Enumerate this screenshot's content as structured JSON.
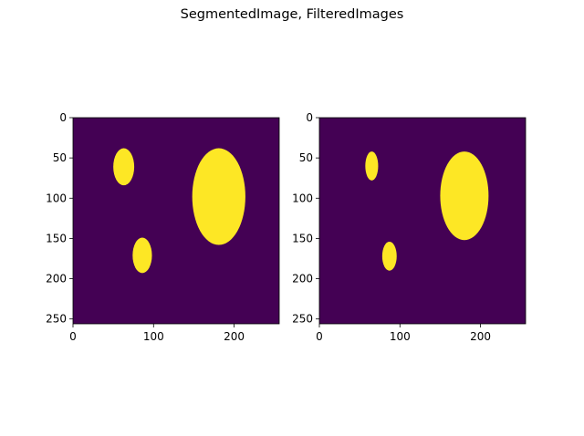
{
  "figure": {
    "title": "SegmentedImage, FilteredImages"
  },
  "chart_data": [
    {
      "type": "heatmap",
      "title": "",
      "xlabel": "",
      "ylabel": "",
      "xlim": [
        0,
        256
      ],
      "ylim": [
        256,
        0
      ],
      "xticks": [
        0,
        100,
        200
      ],
      "yticks": [
        0,
        50,
        100,
        150,
        200,
        250
      ],
      "grid": false,
      "colors": {
        "background": "#440154",
        "foreground": "#fde725"
      },
      "regions": [
        {
          "cx": 63,
          "cy": 61,
          "rx": 13,
          "ry": 23
        },
        {
          "cx": 181,
          "cy": 98,
          "rx": 33,
          "ry": 60
        },
        {
          "cx": 86,
          "cy": 171,
          "rx": 12,
          "ry": 22
        }
      ]
    },
    {
      "type": "heatmap",
      "title": "",
      "xlabel": "",
      "ylabel": "",
      "xlim": [
        0,
        256
      ],
      "ylim": [
        256,
        0
      ],
      "xticks": [
        0,
        100,
        200
      ],
      "yticks": [
        0,
        50,
        100,
        150,
        200,
        250
      ],
      "grid": false,
      "colors": {
        "background": "#440154",
        "foreground": "#fde725"
      },
      "regions": [
        {
          "cx": 65,
          "cy": 60,
          "rx": 8,
          "ry": 18
        },
        {
          "cx": 180,
          "cy": 97,
          "rx": 30,
          "ry": 55
        },
        {
          "cx": 87,
          "cy": 172,
          "rx": 9,
          "ry": 18
        }
      ]
    }
  ]
}
